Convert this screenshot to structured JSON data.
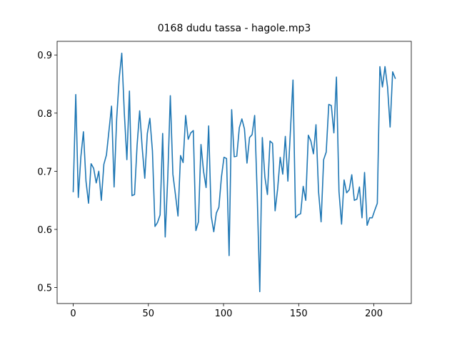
{
  "chart_data": {
    "type": "line",
    "title": "0168 dudu tassa - hagole.mp3",
    "x": [
      0,
      1.7,
      3.4,
      5.1,
      6.8,
      8.5,
      10.2,
      11.9,
      13.6,
      15.3,
      17,
      18.7,
      20.4,
      22.1,
      23.8,
      25.5,
      27.2,
      28.9,
      30.6,
      32.3,
      34,
      35.7,
      37.4,
      39.1,
      40.8,
      42.5,
      44.2,
      45.9,
      47.6,
      49.3,
      51,
      52.7,
      54.4,
      56.1,
      57.8,
      59.5,
      61.2,
      62.9,
      64.6,
      66.3,
      68,
      69.7,
      71.4,
      73.1,
      74.8,
      76.5,
      78.2,
      79.9,
      81.6,
      83.3,
      85,
      86.7,
      88.4,
      90.1,
      91.8,
      93.5,
      95.2,
      96.9,
      98.6,
      100.3,
      102,
      103.7,
      105.4,
      107.1,
      108.8,
      110.5,
      112.2,
      113.9,
      115.6,
      117.3,
      119,
      120.7,
      122.4,
      124.1,
      125.8,
      127.5,
      129.2,
      130.9,
      132.6,
      134.3,
      136,
      137.7,
      139.4,
      141.1,
      142.8,
      144.5,
      146.2,
      147.9,
      149.6,
      151.3,
      153,
      154.7,
      156.4,
      158.1,
      159.8,
      161.5,
      163.2,
      164.9,
      166.6,
      168.3,
      170,
      171.7,
      173.4,
      175.1,
      176.8,
      178.5,
      180.2,
      181.9,
      183.6,
      185.3,
      187,
      188.7,
      190.4,
      192.1,
      193.8,
      195.5,
      197.2,
      198.9,
      200.6,
      202.3,
      204,
      205.7,
      207.4,
      209.1,
      210.8,
      212.5,
      214.2
    ],
    "series": [
      {
        "color": "#1f77b4",
        "values": [
          0.665,
          0.832,
          0.655,
          0.725,
          0.768,
          0.683,
          0.645,
          0.713,
          0.705,
          0.68,
          0.7,
          0.65,
          0.712,
          0.728,
          0.77,
          0.812,
          0.673,
          0.79,
          0.86,
          0.903,
          0.8,
          0.72,
          0.838,
          0.658,
          0.66,
          0.745,
          0.804,
          0.74,
          0.688,
          0.765,
          0.791,
          0.735,
          0.605,
          0.612,
          0.625,
          0.765,
          0.587,
          0.69,
          0.83,
          0.695,
          0.66,
          0.623,
          0.727,
          0.715,
          0.796,
          0.755,
          0.766,
          0.77,
          0.598,
          0.613,
          0.746,
          0.7,
          0.672,
          0.778,
          0.623,
          0.596,
          0.628,
          0.638,
          0.69,
          0.724,
          0.722,
          0.555,
          0.806,
          0.725,
          0.726,
          0.775,
          0.79,
          0.773,
          0.714,
          0.758,
          0.763,
          0.796,
          0.66,
          0.493,
          0.758,
          0.69,
          0.66,
          0.752,
          0.748,
          0.632,
          0.67,
          0.724,
          0.695,
          0.76,
          0.683,
          0.77,
          0.857,
          0.62,
          0.625,
          0.627,
          0.674,
          0.65,
          0.762,
          0.752,
          0.73,
          0.78,
          0.665,
          0.613,
          0.72,
          0.733,
          0.815,
          0.813,
          0.766,
          0.862,
          0.665,
          0.609,
          0.685,
          0.663,
          0.668,
          0.694,
          0.65,
          0.652,
          0.673,
          0.62,
          0.698,
          0.607,
          0.62,
          0.62,
          0.633,
          0.645,
          0.88,
          0.845,
          0.88,
          0.845,
          0.776,
          0.871,
          0.86
        ]
      }
    ],
    "xlim": [
      -10.7,
      224.9
    ],
    "xticks": [
      0,
      50,
      100,
      150,
      200
    ],
    "ylim": [
      0.4725,
      0.9235
    ],
    "yticks": [
      0.5,
      0.6,
      0.7,
      0.8,
      0.9
    ],
    "grid": false
  }
}
